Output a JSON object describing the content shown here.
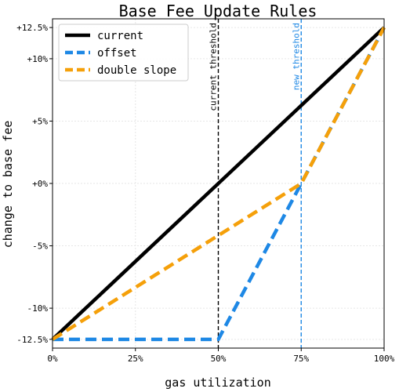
{
  "chart_data": {
    "type": "line",
    "title": "Base Fee Update Rules",
    "xlabel": "gas utilization",
    "ylabel": "change to base fee",
    "xlim": [
      0,
      100
    ],
    "ylim": [
      -12.5,
      12.5
    ],
    "x_ticks": [
      {
        "value": 0,
        "label": "0%"
      },
      {
        "value": 25,
        "label": "25%"
      },
      {
        "value": 50,
        "label": "50%"
      },
      {
        "value": 75,
        "label": "75%"
      },
      {
        "value": 100,
        "label": "100%"
      }
    ],
    "y_ticks": [
      {
        "value": 12.5,
        "label": "+12.5%"
      },
      {
        "value": 10,
        "label": "+10%"
      },
      {
        "value": 5,
        "label": "+5%"
      },
      {
        "value": 0,
        "label": "+0%"
      },
      {
        "value": -5,
        "label": "-5%"
      },
      {
        "value": -10,
        "label": "-10%"
      },
      {
        "value": -12.5,
        "label": "-12.5%"
      }
    ],
    "grid": true,
    "legend_position": "top-left",
    "series": [
      {
        "name": "current",
        "color": "#000000",
        "style": "solid",
        "points": [
          [
            0,
            -12.5
          ],
          [
            100,
            12.5
          ]
        ]
      },
      {
        "name": "offset",
        "color": "#1e88e5",
        "style": "dashed",
        "points": [
          [
            0,
            -12.5
          ],
          [
            50,
            -12.5
          ],
          [
            75,
            0
          ],
          [
            100,
            12.5
          ]
        ]
      },
      {
        "name": "double slope",
        "color": "#f5a00a",
        "style": "dashed",
        "points": [
          [
            0,
            -12.5
          ],
          [
            75,
            0
          ],
          [
            100,
            12.5
          ]
        ]
      }
    ],
    "vlines": [
      {
        "x": 50,
        "label": "current threshold",
        "color": "#000000"
      },
      {
        "x": 75,
        "label": "new threshold",
        "color": "#1e88e5"
      }
    ]
  }
}
